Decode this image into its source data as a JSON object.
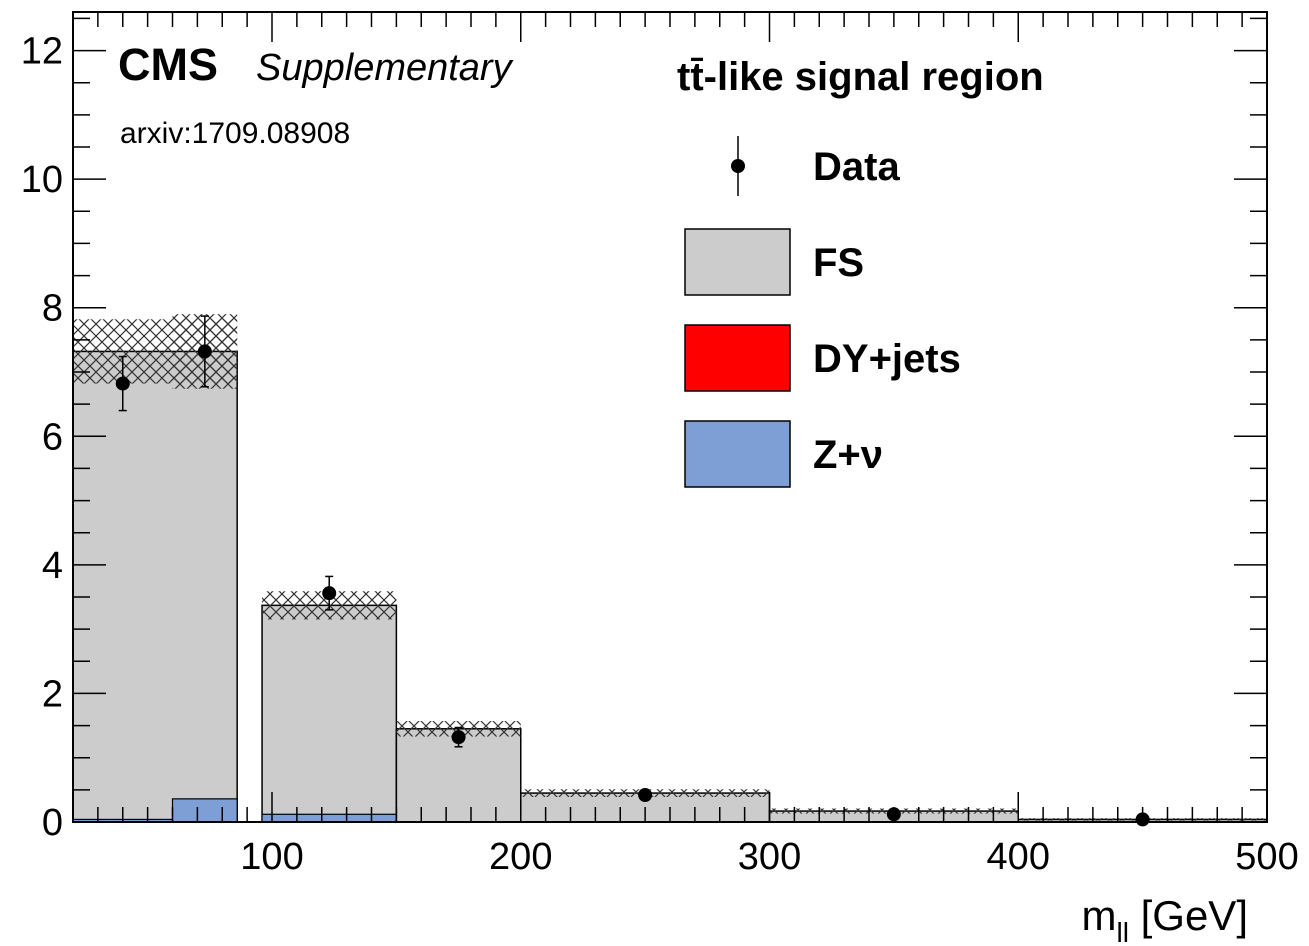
{
  "chart_data": {
    "type": "bar",
    "experiment": "CMS",
    "experiment_note": "Supplementary",
    "reference": "arxiv:1709.08908",
    "region_label": "tt̄-like signal region",
    "xlabel": "m",
    "xlabel_sub": "ll",
    "xlabel_unit": " [GeV]",
    "ylabel": "",
    "xlim": [
      20,
      500
    ],
    "ylim": [
      0,
      12.6
    ],
    "x_ticks": [
      100,
      200,
      300,
      400,
      500
    ],
    "y_ticks": [
      0,
      2,
      4,
      6,
      8,
      10,
      12
    ],
    "grid": false,
    "legend_position": "top-right",
    "bins": [
      {
        "low": 20,
        "high": 86,
        "fs": 7.32,
        "dy": 0.0,
        "zv": 0.04,
        "unc": 0.5,
        "data": 6.82,
        "data_x": 40,
        "data_err": 0.42
      },
      {
        "low": 20,
        "high": 86,
        "fs": 7.32,
        "dy": 0.0,
        "zv": 0.0,
        "unc": 0.58,
        "data": 7.32,
        "data_x": 73,
        "data_err": 0.55,
        "low_draw": 60,
        "z_overlay": 0.36
      },
      {
        "low": 96,
        "high": 150,
        "fs": 3.37,
        "dy": 0.0,
        "zv": 0.12,
        "unc": 0.22,
        "data": 3.56,
        "data_x": 123,
        "data_err": 0.26
      },
      {
        "low": 150,
        "high": 200,
        "fs": 1.45,
        "dy": 0.0,
        "zv": 0.0,
        "unc": 0.12,
        "data": 1.32,
        "data_x": 175,
        "data_err": 0.15
      },
      {
        "low": 200,
        "high": 300,
        "fs": 0.45,
        "dy": 0.0,
        "zv": 0.0,
        "unc": 0.06,
        "data": 0.42,
        "data_x": 250,
        "data_err": 0.05
      },
      {
        "low": 300,
        "high": 400,
        "fs": 0.17,
        "dy": 0.0,
        "zv": 0.0,
        "unc": 0.04,
        "data": 0.12,
        "data_x": 350,
        "data_err": 0.03
      },
      {
        "low": 400,
        "high": 500,
        "fs": 0.04,
        "dy": 0.0,
        "zv": 0.0,
        "unc": 0.02,
        "data": 0.04,
        "data_x": 450,
        "data_err": 0.02
      }
    ],
    "legend": [
      {
        "key": "data",
        "label": "Data"
      },
      {
        "key": "fs",
        "label": "FS",
        "color": "#cccccc"
      },
      {
        "key": "dy",
        "label": "DY+jets",
        "color": "#ff0000"
      },
      {
        "key": "zv",
        "label": "Z+ν",
        "color": "#7e9fd6"
      }
    ]
  }
}
